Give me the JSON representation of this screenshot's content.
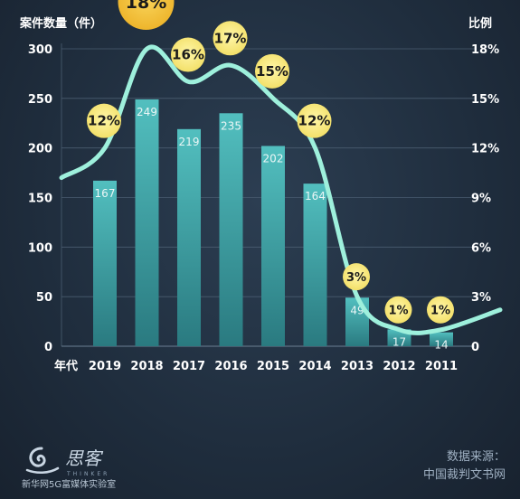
{
  "chart_data": {
    "type": "bar",
    "ylabel_left": "案件数量（件）",
    "ylabel_right": "比例",
    "xlabel": "年代",
    "categories": [
      "2019",
      "2018",
      "2017",
      "2016",
      "2015",
      "2014",
      "2013",
      "2012",
      "2011"
    ],
    "series": [
      {
        "name": "",
        "values": [
          167,
          249,
          219,
          235,
          202,
          164,
          49,
          17,
          14
        ]
      },
      {
        "name": "",
        "values": [
          12,
          18,
          16,
          17,
          15,
          12,
          3,
          1,
          1
        ]
      }
    ],
    "value_labels": [
      "167",
      "249",
      "219",
      "235",
      "202",
      "164",
      "49",
      "17",
      "14"
    ],
    "percent_labels": [
      "12%",
      "18%",
      "16%",
      "17%",
      "15%",
      "12%",
      "3%",
      "1%",
      "1%"
    ],
    "ylim_left": [
      0,
      300
    ],
    "ylim_right": [
      0,
      18
    ],
    "yticks_left": [
      "0",
      "50",
      "100",
      "150",
      "200",
      "250",
      "300"
    ],
    "yticks_right": [
      "0",
      "3%",
      "6%",
      "9%",
      "12%",
      "15%",
      "18%"
    ],
    "grid": true,
    "colors": {
      "bar_top": "#4fb8b8",
      "bar_bottom": "#2a7b80",
      "line": "#9ef0dc",
      "bubble": "#f7e57a",
      "bubble_large": "#f2c23c",
      "axis_text": "#ffffff",
      "grid": "#4a5d70"
    }
  },
  "footer": {
    "source_label": "数据来源：",
    "source_name": "中国裁判文书网"
  },
  "logo": {
    "name": "思客",
    "name_en": "THINKER",
    "subtitle": "新华网5G富媒体实验室"
  }
}
